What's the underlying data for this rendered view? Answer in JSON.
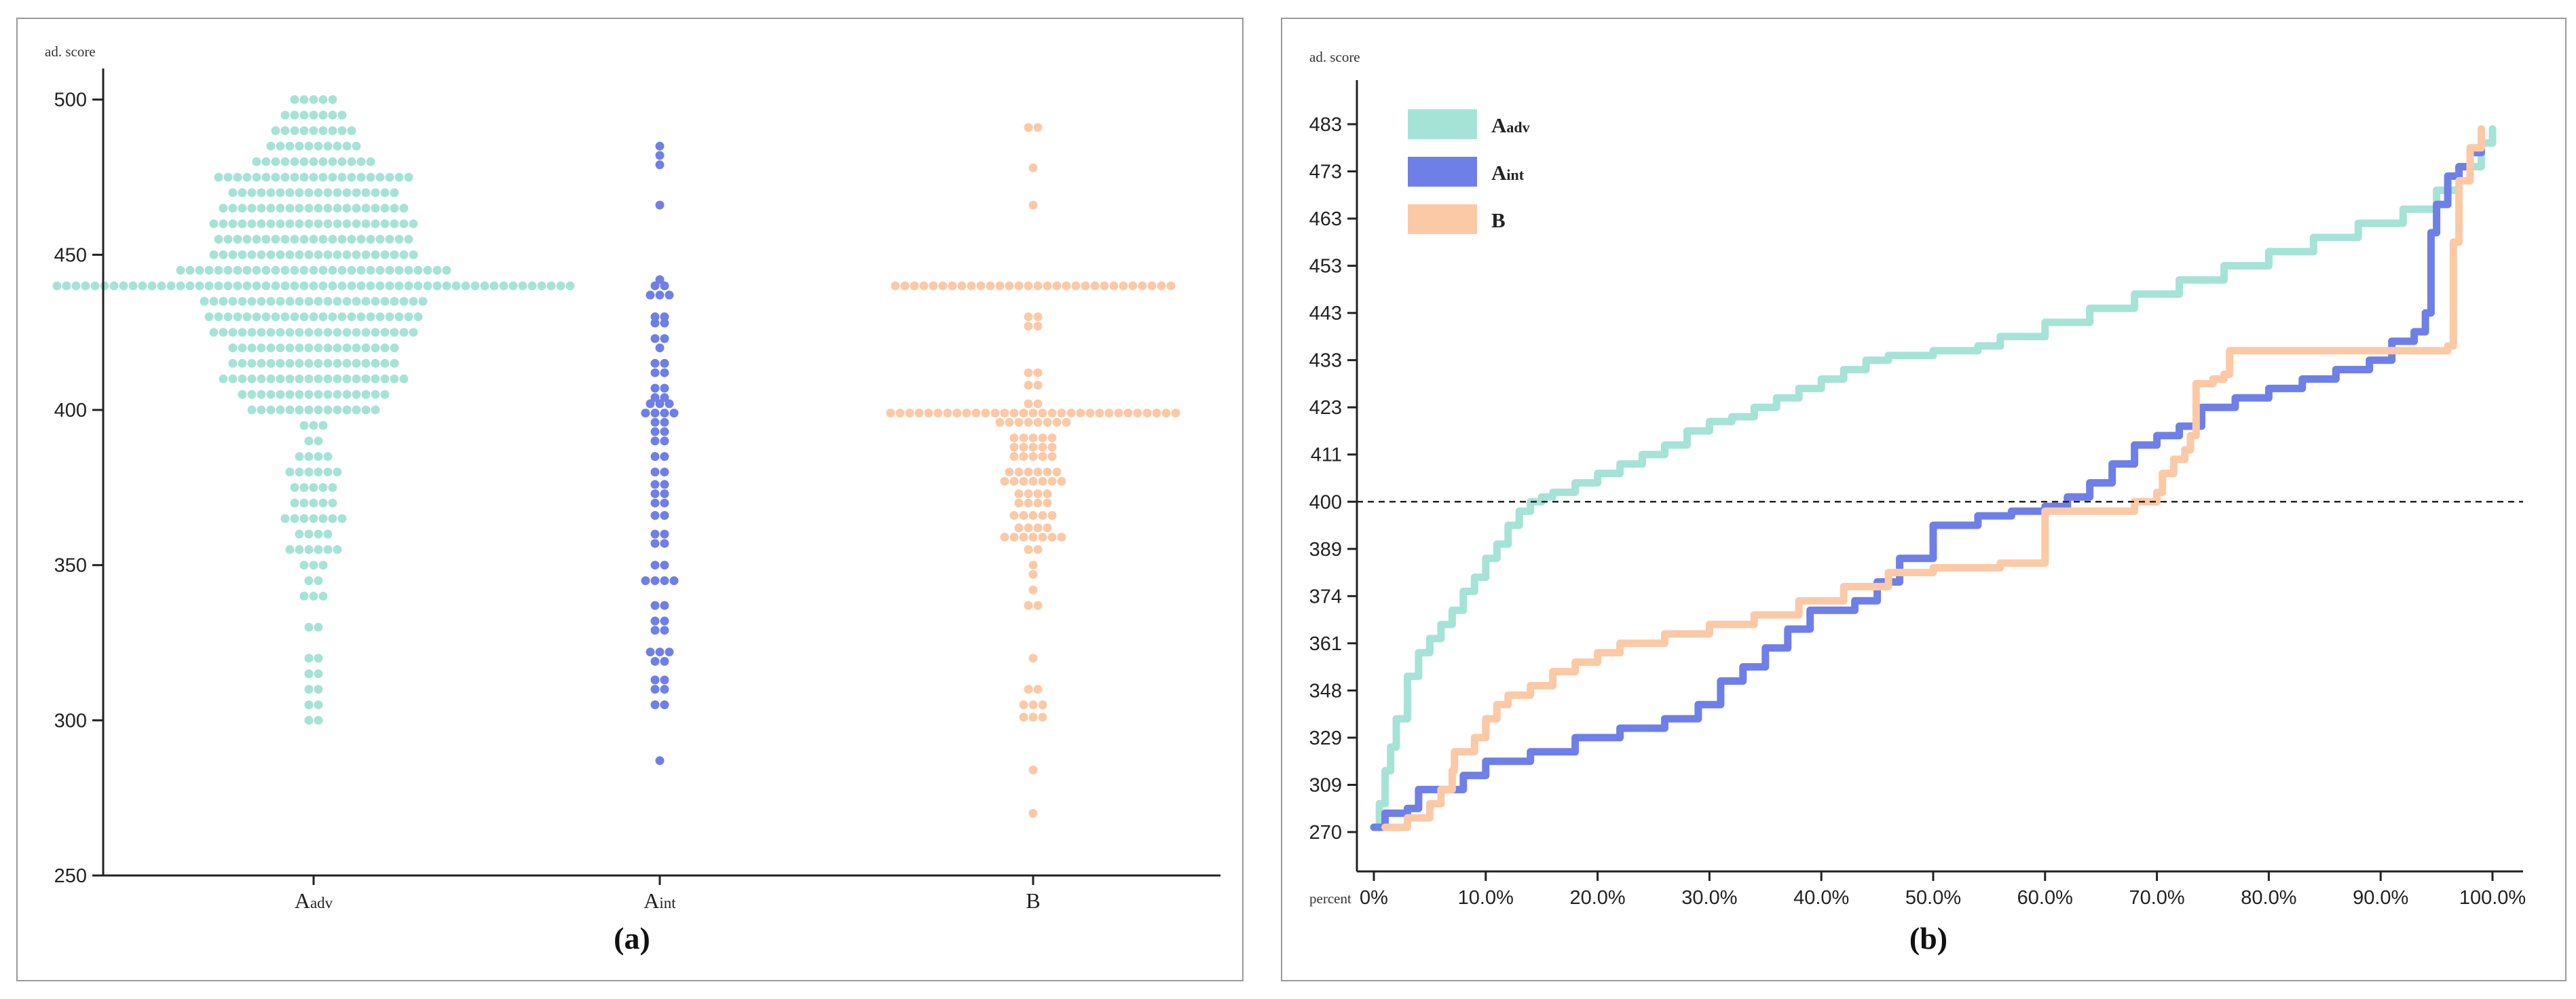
{
  "colors": {
    "A_adv": "#a6e3d7",
    "A_int": "#6f7fe8",
    "B": "#fcc9a6"
  },
  "chart_data": [
    {
      "type": "scatter",
      "panel_label": "(a)",
      "title": "",
      "ylabel": "ad. score",
      "ylim": [
        250,
        510
      ],
      "yticks": [
        "250",
        "300",
        "350",
        "400",
        "450",
        "500"
      ],
      "categories": [
        {
          "key": "A_adv",
          "main": "A",
          "sub": "adv"
        },
        {
          "key": "A_int",
          "main": "A",
          "sub": "int"
        },
        {
          "key": "B",
          "main": "B",
          "sub": ""
        }
      ],
      "series": [
        {
          "name": "A_adv",
          "values": [
            [
              500,
              5
            ],
            [
              495,
              7
            ],
            [
              490,
              9
            ],
            [
              485,
              10
            ],
            [
              480,
              13
            ],
            [
              475,
              21
            ],
            [
              470,
              18
            ],
            [
              465,
              20
            ],
            [
              460,
              22
            ],
            [
              455,
              21
            ],
            [
              450,
              22
            ],
            [
              445,
              29
            ],
            [
              440,
              55
            ],
            [
              435,
              24
            ],
            [
              430,
              23
            ],
            [
              425,
              22
            ],
            [
              420,
              18
            ],
            [
              415,
              18
            ],
            [
              410,
              20
            ],
            [
              405,
              16
            ],
            [
              400,
              14
            ],
            [
              395,
              3
            ],
            [
              390,
              2
            ],
            [
              385,
              4
            ],
            [
              380,
              6
            ],
            [
              375,
              5
            ],
            [
              370,
              5
            ],
            [
              365,
              7
            ],
            [
              360,
              4
            ],
            [
              355,
              6
            ],
            [
              350,
              3
            ],
            [
              345,
              2
            ],
            [
              340,
              3
            ],
            [
              330,
              2
            ],
            [
              320,
              2
            ],
            [
              315,
              2
            ],
            [
              310,
              2
            ],
            [
              305,
              2
            ],
            [
              300,
              2
            ]
          ]
        },
        {
          "name": "A_int",
          "values": [
            [
              485,
              1
            ],
            [
              482,
              1
            ],
            [
              479,
              1
            ],
            [
              466,
              1
            ],
            [
              442,
              1
            ],
            [
              440,
              2
            ],
            [
              437,
              3
            ],
            [
              430,
              2
            ],
            [
              428,
              2
            ],
            [
              423,
              2
            ],
            [
              420,
              1
            ],
            [
              415,
              2
            ],
            [
              412,
              2
            ],
            [
              407,
              2
            ],
            [
              404,
              2
            ],
            [
              402,
              3
            ],
            [
              399,
              4
            ],
            [
              396,
              2
            ],
            [
              393,
              2
            ],
            [
              390,
              2
            ],
            [
              385,
              2
            ],
            [
              380,
              2
            ],
            [
              376,
              2
            ],
            [
              373,
              2
            ],
            [
              370,
              2
            ],
            [
              366,
              2
            ],
            [
              360,
              2
            ],
            [
              357,
              2
            ],
            [
              350,
              2
            ],
            [
              345,
              4
            ],
            [
              337,
              2
            ],
            [
              332,
              2
            ],
            [
              329,
              2
            ],
            [
              322,
              3
            ],
            [
              319,
              2
            ],
            [
              313,
              2
            ],
            [
              310,
              2
            ],
            [
              305,
              2
            ],
            [
              287,
              1
            ]
          ]
        },
        {
          "name": "B",
          "values": [
            [
              491,
              2
            ],
            [
              478,
              1
            ],
            [
              466,
              1
            ],
            [
              440,
              30
            ],
            [
              430,
              2
            ],
            [
              427,
              2
            ],
            [
              412,
              2
            ],
            [
              408,
              2
            ],
            [
              402,
              2
            ],
            [
              399,
              31
            ],
            [
              396,
              8
            ],
            [
              391,
              5
            ],
            [
              388,
              5
            ],
            [
              385,
              5
            ],
            [
              380,
              6
            ],
            [
              377,
              7
            ],
            [
              373,
              4
            ],
            [
              370,
              4
            ],
            [
              366,
              5
            ],
            [
              362,
              4
            ],
            [
              359,
              7
            ],
            [
              355,
              2
            ],
            [
              350,
              1
            ],
            [
              347,
              1
            ],
            [
              342,
              1
            ],
            [
              337,
              2
            ],
            [
              320,
              1
            ],
            [
              310,
              2
            ],
            [
              305,
              3
            ],
            [
              301,
              3
            ],
            [
              284,
              1
            ],
            [
              270,
              1
            ]
          ]
        }
      ]
    },
    {
      "type": "line",
      "panel_label": "(b)",
      "title": "",
      "ylabel": "ad. score",
      "xlabel": "percent",
      "xlim": [
        0,
        100
      ],
      "yticks": [
        "270",
        "309",
        "329",
        "348",
        "361",
        "374",
        "389",
        "400",
        "411",
        "423",
        "433",
        "443",
        "453",
        "463",
        "473",
        "483"
      ],
      "xticks": [
        "0%",
        "10.0%",
        "20.0%",
        "30.0%",
        "40.0%",
        "50.0%",
        "60.0%",
        "70.0%",
        "80.0%",
        "90.0%",
        "100.0%"
      ],
      "reference_line": {
        "y_index": 7,
        "label": "400",
        "style": "dashed"
      },
      "legend": {
        "position": "top-left",
        "entries": [
          {
            "key": "A_adv",
            "main": "A",
            "sub": "adv"
          },
          {
            "key": "A_int",
            "main": "A",
            "sub": "int"
          },
          {
            "key": "B",
            "main": "B",
            "sub": ""
          }
        ]
      },
      "series": [
        {
          "name": "A_adv",
          "points": [
            [
              0,
              0.1
            ],
            [
              0.5,
              0.6
            ],
            [
              1,
              1.3
            ],
            [
              1.5,
              1.8
            ],
            [
              2,
              2.4
            ],
            [
              3,
              3.3
            ],
            [
              4,
              3.8
            ],
            [
              5,
              4.1
            ],
            [
              6,
              4.4
            ],
            [
              7,
              4.7
            ],
            [
              8,
              5.1
            ],
            [
              9,
              5.4
            ],
            [
              10,
              5.8
            ],
            [
              11,
              6.1
            ],
            [
              12,
              6.5
            ],
            [
              13,
              6.8
            ],
            [
              14,
              7.0
            ],
            [
              15,
              7.1
            ],
            [
              16,
              7.2
            ],
            [
              18,
              7.4
            ],
            [
              20,
              7.6
            ],
            [
              22,
              7.8
            ],
            [
              24,
              8.0
            ],
            [
              26,
              8.2
            ],
            [
              28,
              8.5
            ],
            [
              30,
              8.7
            ],
            [
              32,
              8.8
            ],
            [
              34,
              9.0
            ],
            [
              36,
              9.2
            ],
            [
              38,
              9.4
            ],
            [
              40,
              9.6
            ],
            [
              42,
              9.8
            ],
            [
              44,
              10.0
            ],
            [
              46,
              10.1
            ],
            [
              50,
              10.2
            ],
            [
              54,
              10.3
            ],
            [
              56,
              10.5
            ],
            [
              60,
              10.8
            ],
            [
              64,
              11.1
            ],
            [
              68,
              11.4
            ],
            [
              72,
              11.7
            ],
            [
              76,
              12.0
            ],
            [
              80,
              12.3
            ],
            [
              84,
              12.6
            ],
            [
              88,
              12.9
            ],
            [
              92,
              13.2
            ],
            [
              95,
              13.6
            ],
            [
              97,
              14.1
            ],
            [
              99,
              14.6
            ],
            [
              100,
              14.9
            ]
          ]
        },
        {
          "name": "A_int",
          "points": [
            [
              0,
              0.1
            ],
            [
              1,
              0.4
            ],
            [
              3,
              0.5
            ],
            [
              4,
              0.9
            ],
            [
              8,
              1.2
            ],
            [
              10,
              1.5
            ],
            [
              14,
              1.7
            ],
            [
              18,
              2.0
            ],
            [
              22,
              2.2
            ],
            [
              26,
              2.4
            ],
            [
              29,
              2.7
            ],
            [
              31,
              3.2
            ],
            [
              33,
              3.5
            ],
            [
              35,
              3.9
            ],
            [
              37,
              4.3
            ],
            [
              39,
              4.7
            ],
            [
              43,
              4.9
            ],
            [
              45,
              5.3
            ],
            [
              47,
              5.8
            ],
            [
              50,
              6.5
            ],
            [
              54,
              6.7
            ],
            [
              57,
              6.8
            ],
            [
              60,
              6.9
            ],
            [
              62,
              7.1
            ],
            [
              64,
              7.4
            ],
            [
              66,
              7.8
            ],
            [
              68,
              8.2
            ],
            [
              70,
              8.4
            ],
            [
              72,
              8.6
            ],
            [
              74,
              9.0
            ],
            [
              77,
              9.2
            ],
            [
              80,
              9.4
            ],
            [
              83,
              9.6
            ],
            [
              86,
              9.8
            ],
            [
              89,
              10.0
            ],
            [
              91,
              10.4
            ],
            [
              93,
              10.6
            ],
            [
              94,
              11.0
            ],
            [
              94.5,
              12.7
            ],
            [
              95,
              13.3
            ],
            [
              96,
              13.9
            ],
            [
              97,
              14.1
            ],
            [
              98,
              14.4
            ],
            [
              99,
              14.6
            ]
          ]
        },
        {
          "name": "B",
          "points": [
            [
              1,
              0.1
            ],
            [
              3,
              0.3
            ],
            [
              5,
              0.6
            ],
            [
              6,
              0.9
            ],
            [
              7,
              1.3
            ],
            [
              7.2,
              1.7
            ],
            [
              9,
              2.0
            ],
            [
              10,
              2.4
            ],
            [
              11,
              2.7
            ],
            [
              12,
              2.9
            ],
            [
              14,
              3.1
            ],
            [
              16,
              3.4
            ],
            [
              18,
              3.6
            ],
            [
              20,
              3.8
            ],
            [
              22,
              4.0
            ],
            [
              26,
              4.2
            ],
            [
              30,
              4.4
            ],
            [
              34,
              4.6
            ],
            [
              38,
              4.9
            ],
            [
              42,
              5.2
            ],
            [
              46,
              5.5
            ],
            [
              50,
              5.6
            ],
            [
              56,
              5.7
            ],
            [
              60,
              6.8
            ],
            [
              68,
              7.0
            ],
            [
              70,
              7.2
            ],
            [
              70.5,
              7.6
            ],
            [
              71.5,
              7.9
            ],
            [
              72.5,
              8.1
            ],
            [
              73,
              8.4
            ],
            [
              73.5,
              9.5
            ],
            [
              75,
              9.6
            ],
            [
              76,
              9.7
            ],
            [
              76.5,
              10.2
            ],
            [
              80,
              10.2
            ],
            [
              90,
              10.2
            ],
            [
              96,
              10.3
            ],
            [
              96.5,
              12.5
            ],
            [
              97,
              13.8
            ],
            [
              98,
              14.5
            ],
            [
              99,
              14.9
            ]
          ]
        }
      ]
    }
  ]
}
